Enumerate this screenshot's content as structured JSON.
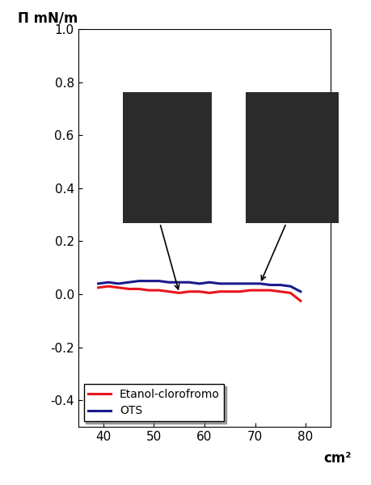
{
  "chart_data": {
    "type": "line",
    "x_label": "cm²",
    "y_label": "Π mN/m",
    "x": [
      39,
      41,
      43,
      45,
      47,
      49,
      51,
      53,
      55,
      57,
      59,
      61,
      63,
      65,
      67,
      69,
      71,
      73,
      75,
      77,
      79
    ],
    "series": [
      {
        "name": "Etanol-clorofromo",
        "color": "#e8141c",
        "values": [
          0.025,
          0.03,
          0.025,
          0.02,
          0.02,
          0.015,
          0.015,
          0.01,
          0.005,
          0.01,
          0.01,
          0.005,
          0.01,
          0.01,
          0.01,
          0.015,
          0.015,
          0.015,
          0.01,
          0.005,
          -0.025
        ]
      },
      {
        "name": "OTS",
        "color": "#1a1a8c",
        "values": [
          0.04,
          0.045,
          0.04,
          0.045,
          0.05,
          0.05,
          0.05,
          0.045,
          0.045,
          0.045,
          0.04,
          0.045,
          0.04,
          0.04,
          0.04,
          0.04,
          0.04,
          0.035,
          0.035,
          0.03,
          0.01
        ]
      }
    ],
    "xlim": [
      35,
      85
    ],
    "ylim": [
      -0.5,
      1.0
    ],
    "xticks": [
      40,
      50,
      60,
      70,
      80
    ],
    "yticks": [
      -0.4,
      -0.2,
      0.0,
      0.2,
      0.4,
      0.6,
      0.8,
      1.0
    ],
    "legend": "lower left",
    "grid": false
  }
}
